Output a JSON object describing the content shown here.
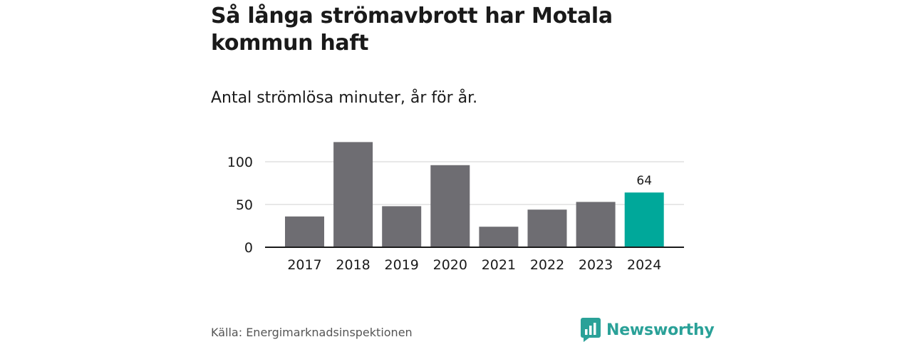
{
  "title": "Så långa strömavbrott har Motala kommun haft",
  "subtitle": "Antal strömlösa minuter, år för år.",
  "source": "Källa: Energimarknadsinspektionen",
  "brand": {
    "name": "Newsworthy",
    "color": "#2aa198",
    "icon": "bar-chart-logo-icon"
  },
  "colors": {
    "bar": "#6e6d72",
    "highlight": "#00a89a",
    "grid": "#d9d9d9",
    "axis": "#1a1a1a"
  },
  "chart_data": {
    "type": "bar",
    "categories": [
      "2017",
      "2018",
      "2019",
      "2020",
      "2021",
      "2022",
      "2023",
      "2024"
    ],
    "values": [
      36,
      123,
      48,
      96,
      24,
      44,
      53,
      64
    ],
    "highlight_index": 7,
    "data_labels": [
      {
        "index": 7,
        "text": "64"
      }
    ],
    "title": "Så långa strömavbrott har Motala kommun haft",
    "subtitle": "Antal strömlösa minuter, år för år.",
    "xlabel": "",
    "ylabel": "",
    "ylim": [
      0,
      125
    ],
    "yticks": [
      0,
      50,
      100
    ],
    "grid": true
  }
}
